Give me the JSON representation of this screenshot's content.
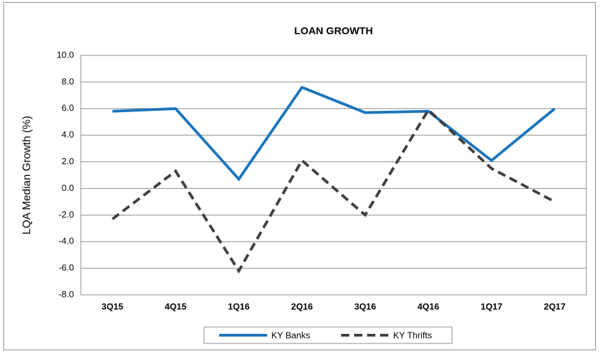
{
  "chart_data": {
    "type": "line",
    "title": "LOAN GROWTH",
    "y_label": "LQA Median Growth (%)",
    "categories": [
      "3Q15",
      "4Q15",
      "1Q16",
      "2Q16",
      "3Q16",
      "4Q16",
      "1Q17",
      "2Q17"
    ],
    "series": [
      {
        "name": "KY Banks",
        "color": "#1b75bc",
        "dash": false,
        "values": [
          5.8,
          6.0,
          0.7,
          7.6,
          5.7,
          5.8,
          2.1,
          6.0
        ]
      },
      {
        "name": "KY Thrifts",
        "color": "#404040",
        "dash": true,
        "values": [
          -2.3,
          1.3,
          -6.2,
          2.1,
          -2.0,
          5.9,
          1.5,
          -1.0
        ]
      }
    ],
    "ylim": [
      -8,
      10
    ],
    "yticks": [
      {
        "value": -8,
        "label": "-8.0"
      },
      {
        "value": -6,
        "label": "-6.0"
      },
      {
        "value": -4,
        "label": "-4.0"
      },
      {
        "value": -2,
        "label": "-2.0"
      },
      {
        "value": 0,
        "label": "0.0"
      },
      {
        "value": 2,
        "label": "2.0"
      },
      {
        "value": 4,
        "label": "4.0"
      },
      {
        "value": 6,
        "label": "6.0"
      },
      {
        "value": 8,
        "label": "8.0"
      },
      {
        "value": 10,
        "label": "10.0"
      }
    ],
    "grid": true,
    "legend": "bottom"
  }
}
